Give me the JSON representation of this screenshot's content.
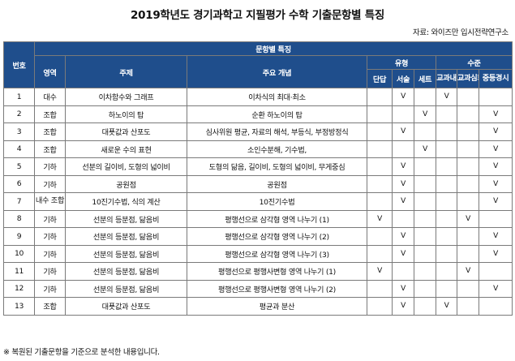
{
  "title": "2019학년도 경기과학고 지필평가 수학 기출문항별 특징",
  "source": "자료: 와이즈만 입시전략연구소",
  "headers": {
    "number": "번호",
    "feature": "문항별 특징",
    "area": "영역",
    "topic": "주제",
    "concept": "주요 개념",
    "type": "유형",
    "type_short": "단답",
    "type_essay": "서술",
    "type_set": "세트",
    "level": "수준",
    "level_textbook": "교과내",
    "level_advanced": "교과심화",
    "level_competition": "중등경시"
  },
  "rows": [
    {
      "no": "1",
      "area": "대수",
      "topic": "이차함수와 그래프",
      "topic_align": "center",
      "concept": "이차식의 최대·최소",
      "concept_align": "center",
      "marks": [
        false,
        true,
        false,
        true,
        false,
        false
      ]
    },
    {
      "no": "2",
      "area": "조합",
      "topic": "하노이의 탑",
      "topic_align": "center",
      "concept": "순환 하노이의 탑",
      "concept_align": "center",
      "marks": [
        false,
        false,
        true,
        false,
        false,
        true
      ]
    },
    {
      "no": "3",
      "area": "조합",
      "topic": "대푯값과 산포도",
      "topic_align": "center",
      "concept": "심사위원 평균, 자료의 해석, 부등식, 부정방정식",
      "concept_align": "left",
      "marks": [
        false,
        true,
        false,
        false,
        false,
        true
      ]
    },
    {
      "no": "4",
      "area": "조합",
      "topic": "새로운 수의 표현",
      "topic_align": "center",
      "concept": "소인수분해, 기수법,",
      "concept_align": "center",
      "marks": [
        false,
        false,
        true,
        false,
        false,
        true
      ]
    },
    {
      "no": "5",
      "area": "기하",
      "topic": "선분의 길이비, 도형의 넓이비",
      "topic_align": "left",
      "concept": "도형의 닮음, 길이비, 도형의 넓이비, 무게중심",
      "concept_align": "left",
      "marks": [
        false,
        true,
        false,
        false,
        false,
        true
      ]
    },
    {
      "no": "6",
      "area": "기하",
      "topic": "공원점",
      "topic_align": "center",
      "concept": "공원점",
      "concept_align": "center",
      "marks": [
        false,
        true,
        false,
        false,
        false,
        true
      ]
    },
    {
      "no": "7",
      "area": "내수 조합",
      "topic": "10진기수법, 식의 계산",
      "topic_align": "center",
      "concept": "10진기수법",
      "concept_align": "center",
      "marks": [
        false,
        true,
        false,
        false,
        false,
        true
      ]
    },
    {
      "no": "8",
      "area": "기하",
      "topic": "선분의 등분점, 닮음비",
      "topic_align": "center",
      "concept": "평행선으로 삼각형 영역 나누기 (1)",
      "concept_align": "center",
      "marks": [
        true,
        false,
        false,
        false,
        true,
        false
      ]
    },
    {
      "no": "9",
      "area": "기하",
      "topic": "선분의 등분점, 닮음비",
      "topic_align": "center",
      "concept": "평행선으로 삼각형 영역 나누기 (2)",
      "concept_align": "center",
      "marks": [
        false,
        true,
        false,
        false,
        false,
        true
      ]
    },
    {
      "no": "10",
      "area": "기하",
      "topic": "선분의 등분점, 닮음비",
      "topic_align": "center",
      "concept": "평행선으로 삼각형 영역 나누기 (3)",
      "concept_align": "center",
      "marks": [
        false,
        true,
        false,
        false,
        false,
        true
      ]
    },
    {
      "no": "11",
      "area": "기하",
      "topic": "선분의 등분점, 닮음비",
      "topic_align": "center",
      "concept": "평행선으로 평행사변형 영역 나누기 (1)",
      "concept_align": "center",
      "marks": [
        true,
        false,
        false,
        false,
        true,
        false
      ]
    },
    {
      "no": "12",
      "area": "기하",
      "topic": "선분의 등분점, 닮음비",
      "topic_align": "center",
      "concept": "평행선으로 평행사변형 영역 나누기 (2)",
      "concept_align": "center",
      "marks": [
        false,
        true,
        false,
        false,
        false,
        true
      ]
    },
    {
      "no": "13",
      "area": "조합",
      "topic": "대푯값과 산포도",
      "topic_align": "center",
      "concept": "평균과 분산",
      "concept_align": "center",
      "marks": [
        false,
        true,
        false,
        true,
        false,
        false
      ]
    }
  ],
  "check_glyph": "V",
  "note": "※ 복원된 기출문항을 기준으로 분석한 내용입니다."
}
